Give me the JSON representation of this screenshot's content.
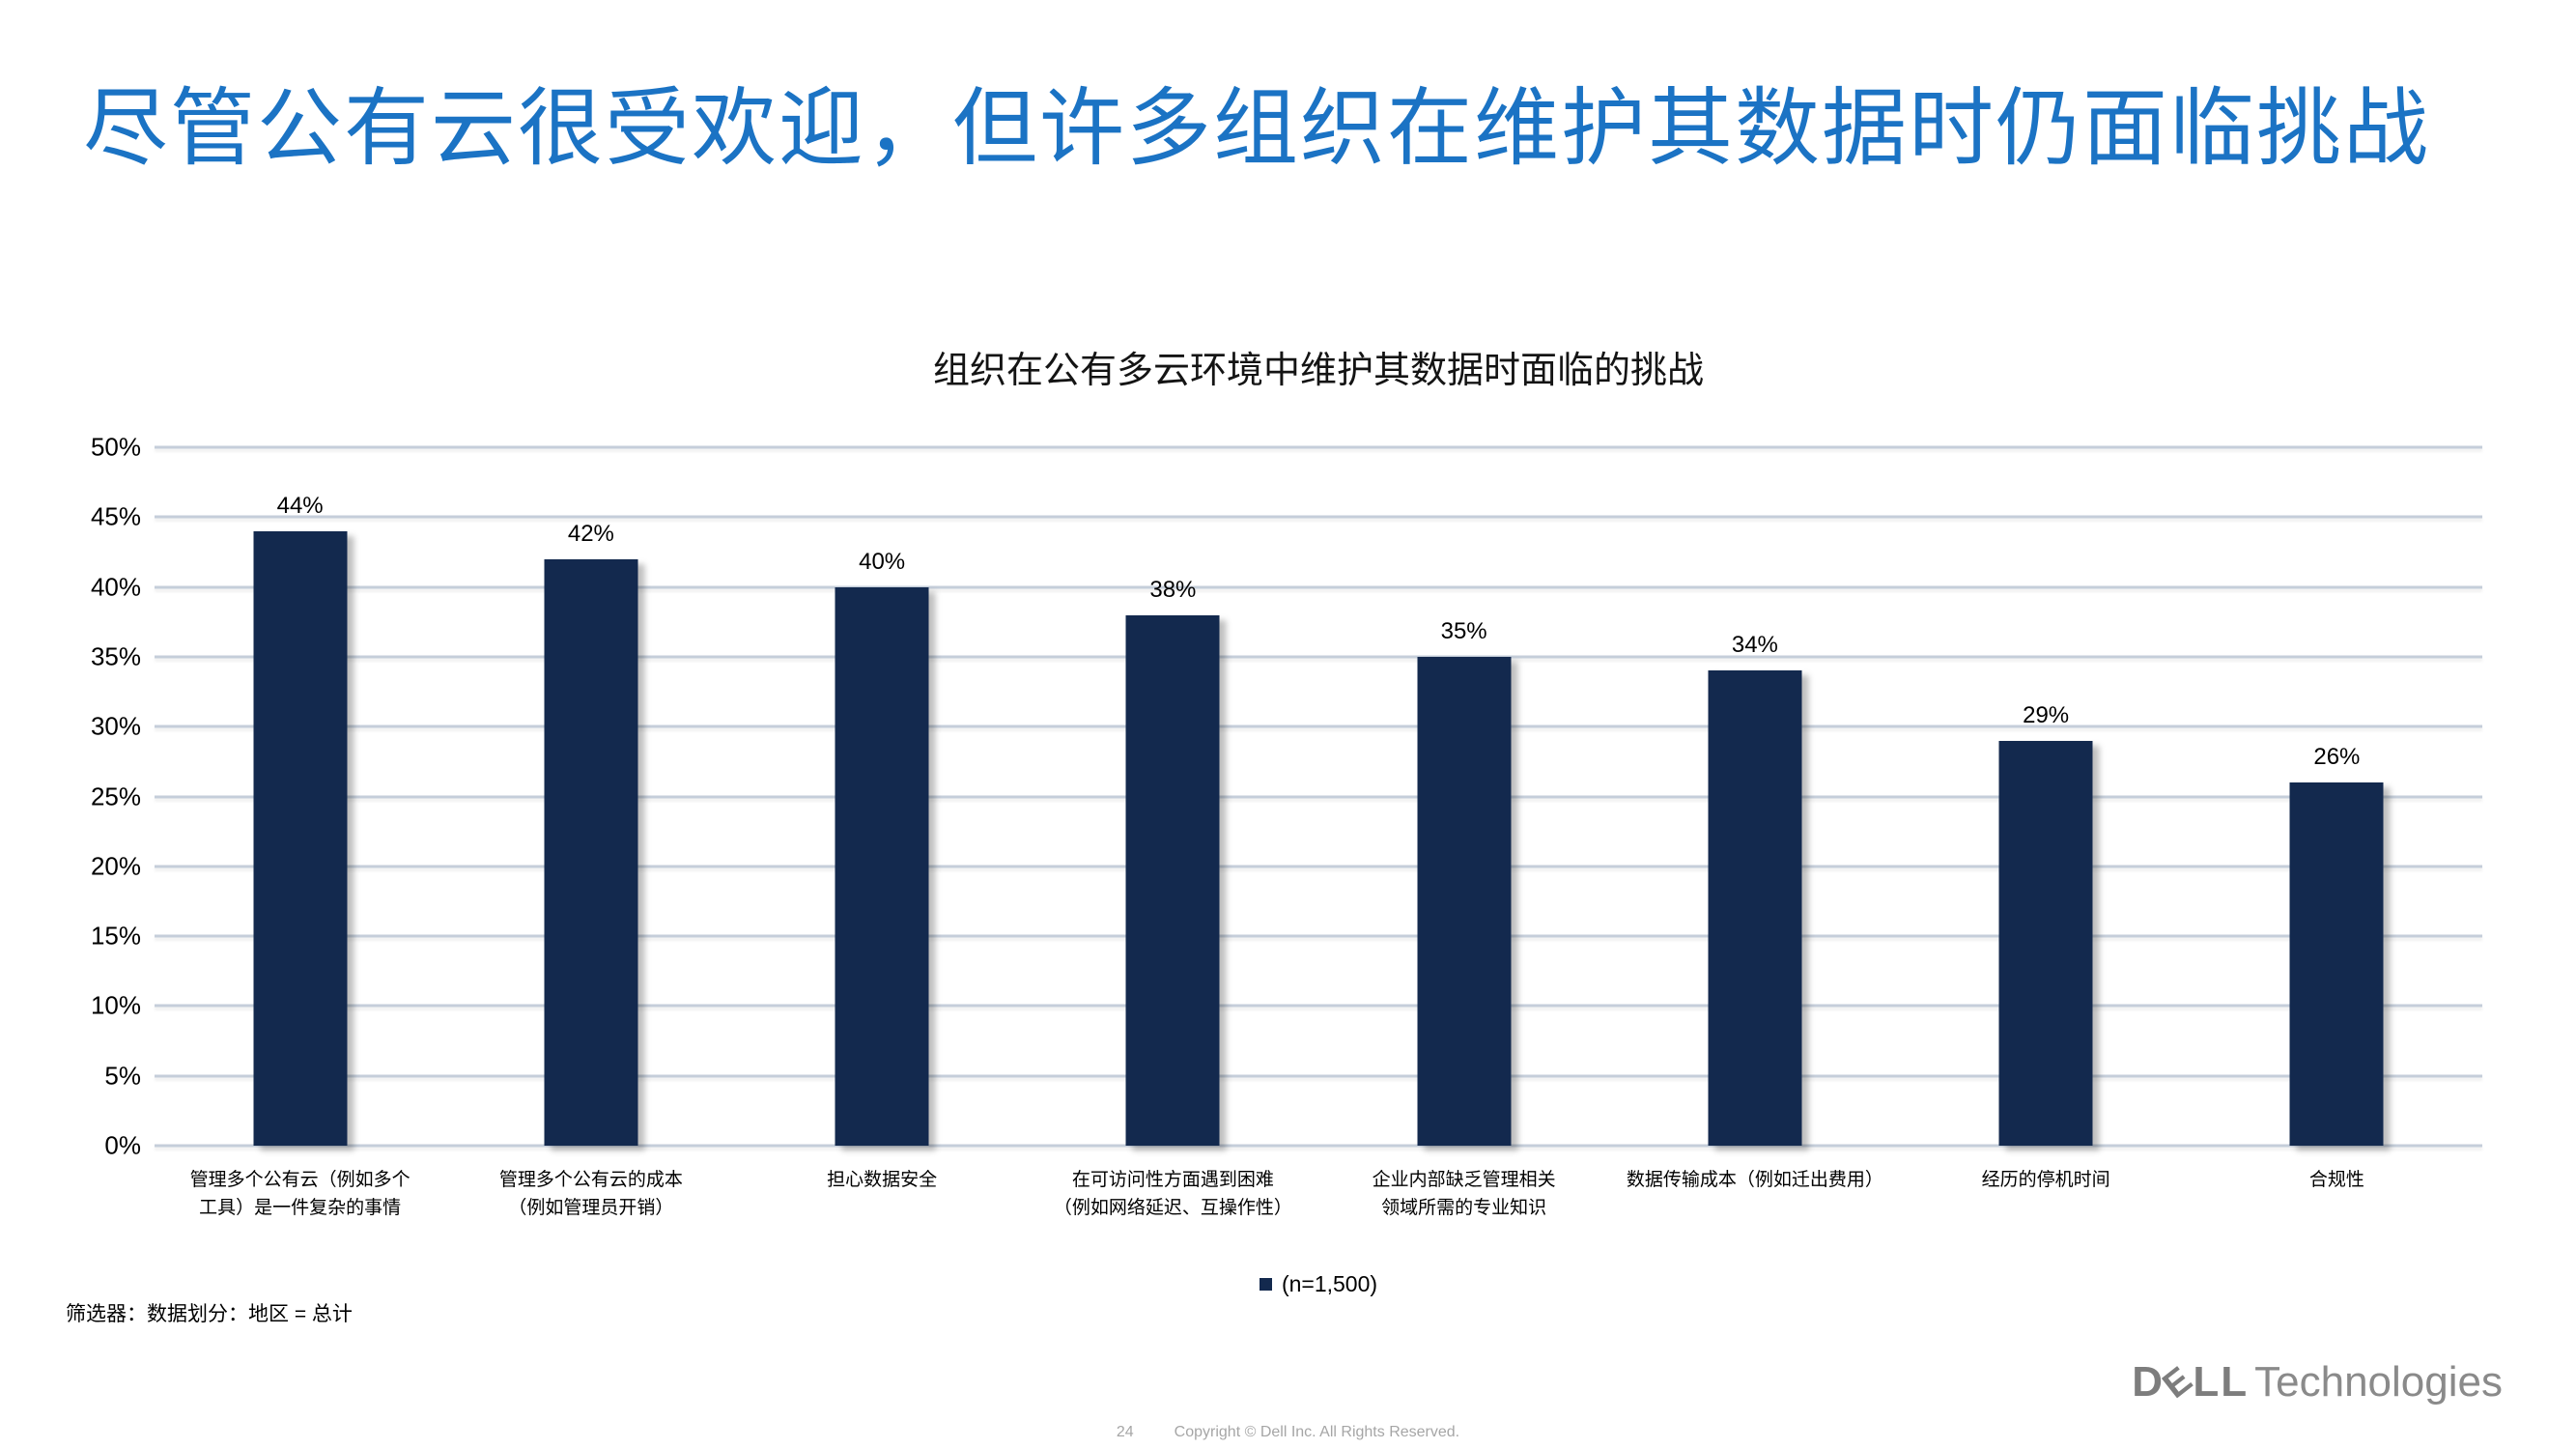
{
  "slide": {
    "title": "尽管公有云很受欢迎，但许多组织在维护其数据时仍面临挑战",
    "filter_note": "筛选器：数据划分：地区 = 总计",
    "footer": {
      "page_number": "24",
      "copyright": "Copyright © Dell Inc. All Rights Reserved."
    },
    "logo": {
      "dell": "DELL",
      "technologies": "Technologies"
    }
  },
  "chart_data": {
    "type": "bar",
    "title": "组织在公有多云环境中维护其数据时面临的挑战",
    "categories": [
      "管理多个公有云（例如多个\n工具）是一件复杂的事情",
      "管理多个公有云的成本\n（例如管理员开销）",
      "担心数据安全",
      "在可访问性方面遇到困难\n（例如网络延迟、互操作性）",
      "企业内部缺乏管理相关\n领域所需的专业知识",
      "数据传输成本（例如迁出费用）",
      "经历的停机时间",
      "合规性"
    ],
    "values": [
      44,
      42,
      40,
      38,
      35,
      34,
      29,
      26
    ],
    "value_labels": [
      "44%",
      "42%",
      "40%",
      "38%",
      "35%",
      "34%",
      "29%",
      "26%"
    ],
    "legend_label": "(n=1,500)",
    "legend_position": "bottom",
    "xlabel": "",
    "ylabel": "",
    "ylim": [
      0,
      50
    ],
    "ytick_step": 5,
    "ytick_labels": [
      "0%",
      "5%",
      "10%",
      "15%",
      "20%",
      "25%",
      "30%",
      "35%",
      "40%",
      "45%",
      "50%"
    ],
    "grid": true,
    "bar_color": "#13294E"
  },
  "colors": {
    "title_blue": "#1B73C4",
    "bar_navy": "#13294E",
    "gridline": "#C5CEDA",
    "footer_gray": "#A6A6A6",
    "logo_gray": "#7D7D7D"
  }
}
